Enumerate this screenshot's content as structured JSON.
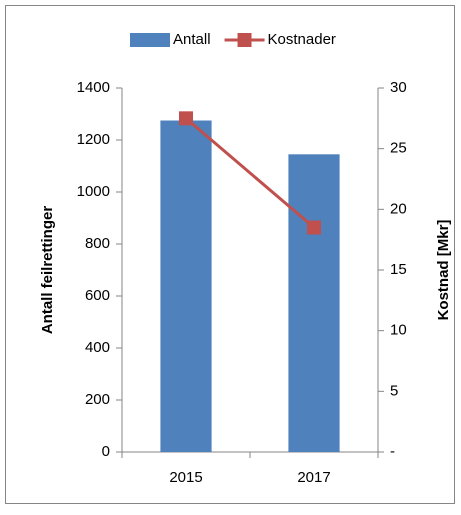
{
  "chart_data": {
    "type": "bar",
    "categories": [
      "2015",
      "2017"
    ],
    "series": [
      {
        "name": "Antall",
        "color": "#4f81bd",
        "values": [
          1275,
          1145
        ]
      },
      {
        "name": "Kostnader",
        "color": "#c0504d",
        "values": [
          27.5,
          18.5
        ],
        "axis": "y2",
        "type": "line"
      }
    ],
    "ylabel": "Antall feilrettinger",
    "y2label": "Kostnad [Mkr]",
    "ylim": [
      0,
      1400
    ],
    "yticks": [
      0,
      200,
      400,
      600,
      800,
      1000,
      1200,
      1400
    ],
    "y2lim": [
      0,
      30
    ],
    "y2ticks": [
      {
        "value": 0,
        "label": "-"
      },
      5,
      10,
      15,
      20,
      25,
      30
    ],
    "grid": false,
    "legend": "top"
  }
}
